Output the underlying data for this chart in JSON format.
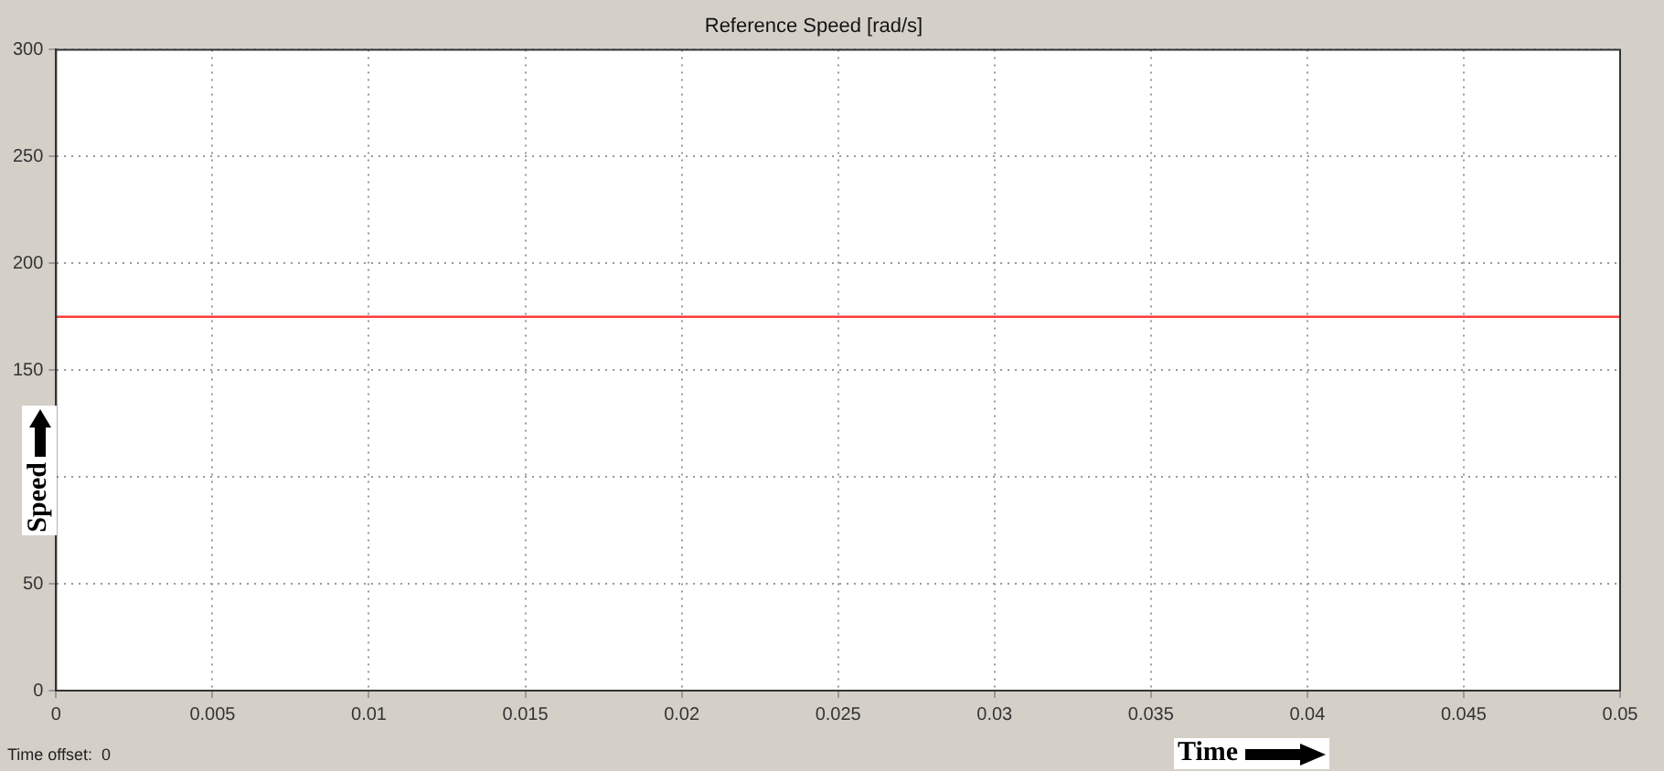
{
  "chart_data": {
    "type": "line",
    "title": "Reference Speed [rad/s]",
    "xlabel": "Time",
    "ylabel": "Speed",
    "annotations": [
      "Time offset:  0"
    ],
    "x": [
      0,
      0.05
    ],
    "series": [
      {
        "color": "#ff3b3b",
        "values": [
          175,
          175
        ]
      }
    ],
    "xlim": [
      0,
      0.05
    ],
    "xticks": [
      0,
      0.005,
      0.01,
      0.015,
      0.02,
      0.025,
      0.03,
      0.035,
      0.04,
      0.045,
      0.05
    ],
    "ylim": [
      0,
      300
    ],
    "yticks": [
      0,
      50,
      {
        "value": 100,
        "label": null
      },
      150,
      200,
      250,
      300
    ],
    "grid": true,
    "legend": false,
    "marker": "none",
    "line_style": "solid"
  }
}
